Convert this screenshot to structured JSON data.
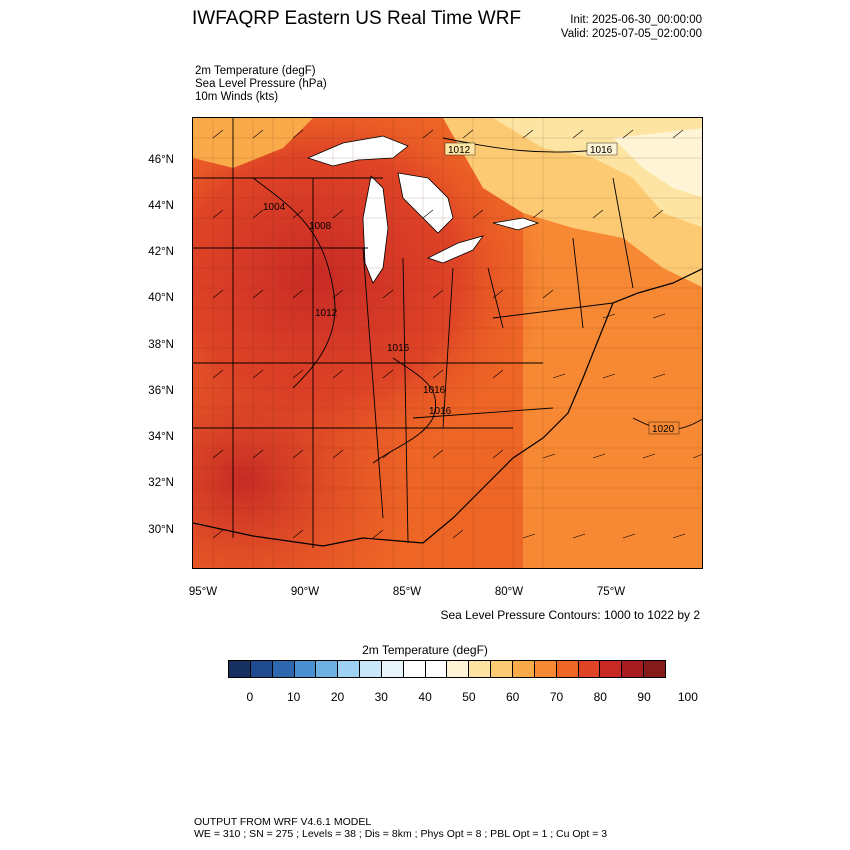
{
  "header": {
    "title": "IWFAQRP Eastern US Real Time WRF",
    "init": "Init: 2025-06-30_00:00:00",
    "valid": "Valid: 2025-07-05_02:00:00"
  },
  "fields": [
    "2m Temperature   (degF)",
    "Sea Level Pressure   (hPa)",
    "10m Winds   (kts)"
  ],
  "axes": {
    "lat_labels": [
      "46°N",
      "44°N",
      "42°N",
      "40°N",
      "38°N",
      "36°N",
      "34°N",
      "32°N",
      "30°N"
    ],
    "lon_labels": [
      "95°W",
      "90°W",
      "85°W",
      "80°W",
      "75°W"
    ]
  },
  "map": {
    "pressure_labels": [
      "1012",
      "1016",
      "1004",
      "1008",
      "1012",
      "1016",
      "1016",
      "1016",
      "1020"
    ],
    "contour_note": "Sea Level Pressure Contours: 1000 to 1022 by 2"
  },
  "colorbar": {
    "title": "2m Temperature  (degF)",
    "labels": [
      "0",
      "10",
      "20",
      "30",
      "40",
      "50",
      "60",
      "70",
      "80",
      "90",
      "100"
    ],
    "colors": [
      "#16305f",
      "#1f4a8f",
      "#2e67ad",
      "#4a8fcf",
      "#6db0e2",
      "#9fd2f2",
      "#c8e8f8",
      "#e8f6fc",
      "#ffffff",
      "#ffffff",
      "#fff4d6",
      "#fee4a2",
      "#fdca74",
      "#fbaa4a",
      "#f78934",
      "#ee6626",
      "#df4426",
      "#c72a25",
      "#a71c1f",
      "#851a1a"
    ]
  },
  "footer": {
    "line1": "OUTPUT FROM WRF V4.6.1 MODEL",
    "line2": "WE = 310 ; SN = 275 ; Levels = 38 ; Dis = 8km ; Phys Opt = 8 ; PBL Opt = 1 ; Cu Opt = 3"
  }
}
